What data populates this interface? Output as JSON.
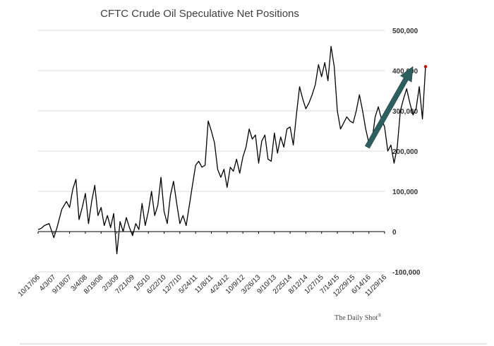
{
  "chart_data": {
    "type": "line",
    "title": "CFTC Crude Oil Speculative Net Positions",
    "xlabel": "",
    "ylabel": "",
    "ylim": [
      -100000,
      500000
    ],
    "yticks": [
      500000,
      400000,
      300000,
      200000,
      100000,
      0,
      -100000
    ],
    "ytick_labels": [
      "500,000",
      "400,000",
      "300,000",
      "200,000",
      "100,000",
      "0",
      "-100,000"
    ],
    "xtick_labels": [
      "10/17/06",
      "4/3/07",
      "9/18/07",
      "3/4/08",
      "8/19/08",
      "2/3/09",
      "7/21/09",
      "1/5/10",
      "6/22/10",
      "12/7/10",
      "5/24/11",
      "11/8/11",
      "4/24/12",
      "10/9/12",
      "3/26/13",
      "9/10/13",
      "2/25/14",
      "8/12/14",
      "1/27/15",
      "7/14/15",
      "12/29/15",
      "6/14/16",
      "11/29/16"
    ],
    "grid": true,
    "legend": "none",
    "series": [
      {
        "color": "#000000",
        "points": [
          [
            0,
            5000
          ],
          [
            0.2,
            8000
          ],
          [
            0.4,
            15000
          ],
          [
            0.7,
            20000
          ],
          [
            1.0,
            -15000
          ],
          [
            1.2,
            10000
          ],
          [
            1.5,
            55000
          ],
          [
            1.8,
            75000
          ],
          [
            2.0,
            60000
          ],
          [
            2.2,
            105000
          ],
          [
            2.4,
            130000
          ],
          [
            2.6,
            30000
          ],
          [
            2.8,
            60000
          ],
          [
            3.0,
            95000
          ],
          [
            3.2,
            20000
          ],
          [
            3.4,
            75000
          ],
          [
            3.6,
            115000
          ],
          [
            3.8,
            40000
          ],
          [
            4.0,
            60000
          ],
          [
            4.2,
            15000
          ],
          [
            4.4,
            40000
          ],
          [
            4.6,
            10000
          ],
          [
            4.8,
            45000
          ],
          [
            5.0,
            -55000
          ],
          [
            5.2,
            25000
          ],
          [
            5.4,
            0
          ],
          [
            5.6,
            35000
          ],
          [
            5.8,
            10000
          ],
          [
            6.0,
            -10000
          ],
          [
            6.2,
            20000
          ],
          [
            6.4,
            5000
          ],
          [
            6.6,
            70000
          ],
          [
            6.8,
            15000
          ],
          [
            7.0,
            50000
          ],
          [
            7.2,
            100000
          ],
          [
            7.4,
            40000
          ],
          [
            7.6,
            65000
          ],
          [
            7.8,
            135000
          ],
          [
            8.0,
            50000
          ],
          [
            8.2,
            20000
          ],
          [
            8.4,
            90000
          ],
          [
            8.6,
            125000
          ],
          [
            8.8,
            70000
          ],
          [
            9.0,
            20000
          ],
          [
            9.2,
            40000
          ],
          [
            9.4,
            15000
          ],
          [
            9.6,
            65000
          ],
          [
            9.8,
            115000
          ],
          [
            10.0,
            165000
          ],
          [
            10.2,
            175000
          ],
          [
            10.4,
            160000
          ],
          [
            10.6,
            165000
          ],
          [
            10.8,
            275000
          ],
          [
            11.0,
            250000
          ],
          [
            11.2,
            220000
          ],
          [
            11.4,
            155000
          ],
          [
            11.6,
            135000
          ],
          [
            11.8,
            155000
          ],
          [
            12.0,
            110000
          ],
          [
            12.2,
            160000
          ],
          [
            12.4,
            150000
          ],
          [
            12.6,
            180000
          ],
          [
            12.8,
            145000
          ],
          [
            13.0,
            185000
          ],
          [
            13.2,
            210000
          ],
          [
            13.4,
            255000
          ],
          [
            13.6,
            230000
          ],
          [
            13.8,
            240000
          ],
          [
            14.0,
            170000
          ],
          [
            14.2,
            225000
          ],
          [
            14.4,
            240000
          ],
          [
            14.6,
            180000
          ],
          [
            14.8,
            175000
          ],
          [
            15.0,
            245000
          ],
          [
            15.2,
            195000
          ],
          [
            15.4,
            235000
          ],
          [
            15.6,
            210000
          ],
          [
            15.8,
            255000
          ],
          [
            16.0,
            260000
          ],
          [
            16.2,
            215000
          ],
          [
            16.4,
            290000
          ],
          [
            16.6,
            360000
          ],
          [
            16.8,
            330000
          ],
          [
            17.0,
            305000
          ],
          [
            17.2,
            320000
          ],
          [
            17.4,
            340000
          ],
          [
            17.6,
            365000
          ],
          [
            17.8,
            415000
          ],
          [
            18.0,
            385000
          ],
          [
            18.2,
            420000
          ],
          [
            18.4,
            375000
          ],
          [
            18.6,
            460000
          ],
          [
            18.8,
            410000
          ],
          [
            19.0,
            300000
          ],
          [
            19.2,
            255000
          ],
          [
            19.4,
            270000
          ],
          [
            19.6,
            285000
          ],
          [
            19.8,
            275000
          ],
          [
            20.0,
            270000
          ],
          [
            20.2,
            300000
          ],
          [
            20.4,
            340000
          ],
          [
            20.6,
            300000
          ],
          [
            20.8,
            255000
          ],
          [
            21.0,
            220000
          ],
          [
            21.2,
            225000
          ],
          [
            21.4,
            285000
          ],
          [
            21.6,
            310000
          ],
          [
            21.8,
            280000
          ],
          [
            22.0,
            260000
          ],
          [
            22.2,
            200000
          ],
          [
            22.4,
            215000
          ],
          [
            22.6,
            170000
          ],
          [
            22.8,
            210000
          ],
          [
            23.0,
            300000
          ],
          [
            23.2,
            330000
          ],
          [
            23.4,
            355000
          ],
          [
            23.6,
            320000
          ],
          [
            23.8,
            290000
          ],
          [
            24.0,
            305000
          ],
          [
            24.2,
            360000
          ],
          [
            24.4,
            280000
          ],
          [
            24.6,
            410000
          ]
        ]
      }
    ],
    "last_point_marker": {
      "x": 24.6,
      "y": 410000,
      "color": "#e00000"
    },
    "annotation_arrow": {
      "from": [
        20.9,
        210000
      ],
      "to": [
        23.8,
        410000
      ],
      "color": "#2c5f5f"
    }
  },
  "source_label": "The Daily Shot",
  "source_mark": "®"
}
